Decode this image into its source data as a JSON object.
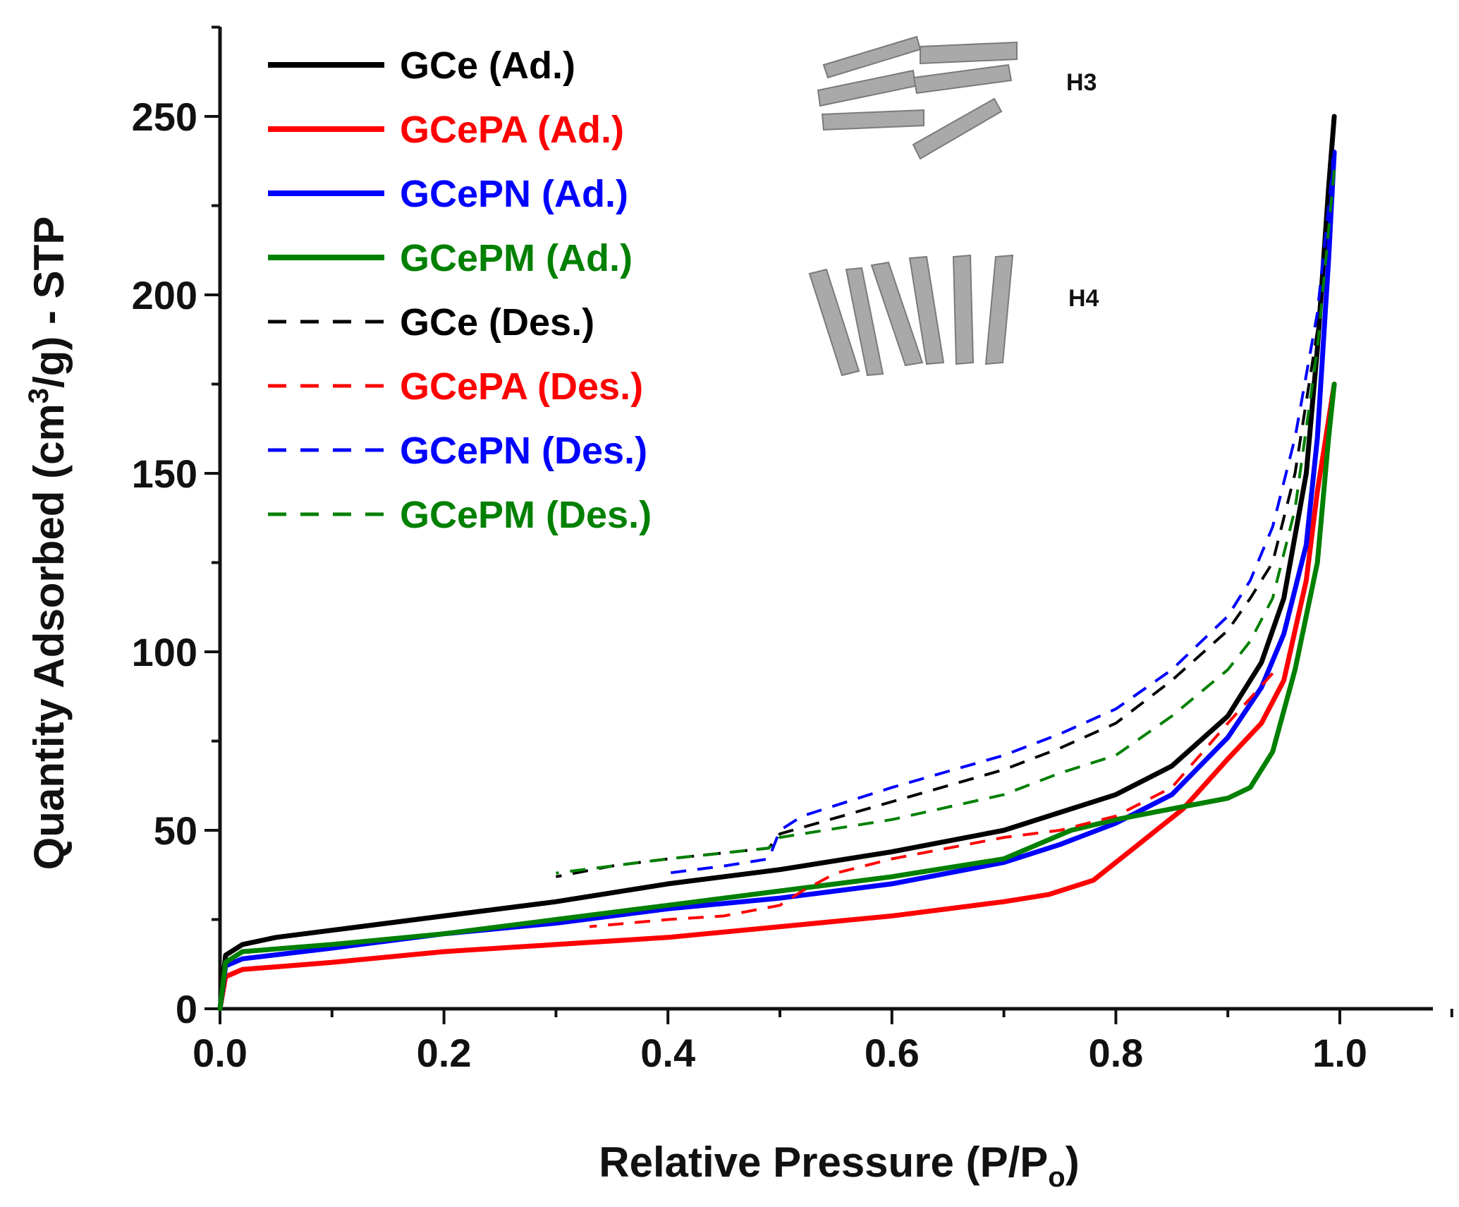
{
  "chart_data": {
    "type": "line",
    "xlabel_main": "Relative Pressure (P/P",
    "xlabel_sub": "o",
    "xlabel_end": ")",
    "ylabel_pre": "Quantity Adsorbed (cm",
    "ylabel_sup": "3",
    "ylabel_post": "/g) - STP",
    "xlim": [
      0,
      1.1
    ],
    "ylim": [
      0,
      275
    ],
    "x_ticks": [
      0.0,
      0.2,
      0.4,
      0.6,
      0.8,
      1.0
    ],
    "x_tick_labels": [
      "0.0",
      "0.2",
      "0.4",
      "0.6",
      "0.8",
      "1.0"
    ],
    "y_ticks": [
      0,
      50,
      100,
      150,
      200,
      250
    ],
    "y_tick_labels": [
      "0",
      "50",
      "100",
      "150",
      "200",
      "250"
    ],
    "legend_position": "top-left",
    "series": [
      {
        "name": "GCe (Ad.)",
        "color": "#000000",
        "style": "solid",
        "x": [
          0,
          0.005,
          0.02,
          0.05,
          0.1,
          0.2,
          0.3,
          0.4,
          0.5,
          0.6,
          0.7,
          0.8,
          0.85,
          0.9,
          0.93,
          0.95,
          0.97,
          0.98,
          0.99,
          0.995
        ],
        "y": [
          0,
          15,
          18,
          20,
          22,
          26,
          30,
          35,
          39,
          44,
          50,
          60,
          68,
          82,
          97,
          115,
          150,
          185,
          230,
          250
        ]
      },
      {
        "name": "GCePA (Ad.)",
        "color": "#ff0000",
        "style": "solid",
        "x": [
          0,
          0.005,
          0.02,
          0.1,
          0.2,
          0.3,
          0.4,
          0.5,
          0.6,
          0.7,
          0.74,
          0.78,
          0.82,
          0.86,
          0.9,
          0.93,
          0.95,
          0.97,
          0.98,
          0.99,
          0.995
        ],
        "y": [
          0,
          9,
          11,
          13,
          16,
          18,
          20,
          23,
          26,
          30,
          32,
          36,
          46,
          56,
          70,
          80,
          92,
          120,
          145,
          165,
          175
        ]
      },
      {
        "name": "GCePN (Ad.)",
        "color": "#0000ff",
        "style": "solid",
        "x": [
          0,
          0.005,
          0.02,
          0.1,
          0.2,
          0.3,
          0.4,
          0.5,
          0.6,
          0.7,
          0.75,
          0.8,
          0.85,
          0.9,
          0.93,
          0.95,
          0.97,
          0.98,
          0.99,
          0.995
        ],
        "y": [
          0,
          12,
          14,
          17,
          21,
          24,
          28,
          31,
          35,
          41,
          46,
          52,
          60,
          76,
          90,
          105,
          130,
          160,
          210,
          240
        ]
      },
      {
        "name": "GCePM (Ad.)",
        "color": "#008000",
        "style": "solid",
        "x": [
          0,
          0.005,
          0.02,
          0.1,
          0.2,
          0.3,
          0.4,
          0.5,
          0.6,
          0.7,
          0.73,
          0.76,
          0.8,
          0.85,
          0.9,
          0.92,
          0.94,
          0.96,
          0.98,
          0.99,
          0.995
        ],
        "y": [
          0,
          13,
          16,
          18,
          21,
          25,
          29,
          33,
          37,
          42,
          46,
          50,
          53,
          56,
          59,
          62,
          72,
          95,
          125,
          160,
          175
        ]
      },
      {
        "name": "GCe (Des.)",
        "color": "#000000",
        "style": "dashed",
        "x": [
          0.995,
          0.98,
          0.96,
          0.94,
          0.92,
          0.9,
          0.85,
          0.8,
          0.75,
          0.7,
          0.6,
          0.5,
          0.49,
          0.4,
          0.35,
          0.3
        ],
        "y": [
          250,
          190,
          150,
          125,
          115,
          106,
          92,
          80,
          73,
          67,
          58,
          49,
          45,
          42,
          40,
          37
        ]
      },
      {
        "name": "GCePA (Des.)",
        "color": "#ff0000",
        "style": "dashed",
        "x": [
          0.94,
          0.9,
          0.85,
          0.8,
          0.75,
          0.7,
          0.6,
          0.55,
          0.52,
          0.5,
          0.45,
          0.4,
          0.33
        ],
        "y": [
          94,
          80,
          62,
          54,
          50,
          48,
          42,
          38,
          33,
          29,
          26,
          25,
          23
        ]
      },
      {
        "name": "GCePN (Des.)",
        "color": "#0000ff",
        "style": "dashed",
        "x": [
          0.995,
          0.98,
          0.96,
          0.94,
          0.92,
          0.9,
          0.85,
          0.8,
          0.75,
          0.7,
          0.6,
          0.52,
          0.5,
          0.49,
          0.45,
          0.4
        ],
        "y": [
          240,
          195,
          160,
          135,
          120,
          110,
          95,
          84,
          77,
          71,
          62,
          54,
          50,
          42,
          40,
          38
        ]
      },
      {
        "name": "GCePM (Des.)",
        "color": "#008000",
        "style": "dashed",
        "x": [
          0.995,
          0.98,
          0.96,
          0.94,
          0.92,
          0.9,
          0.85,
          0.8,
          0.75,
          0.7,
          0.6,
          0.5,
          0.49,
          0.4,
          0.35,
          0.3
        ],
        "y": [
          235,
          185,
          140,
          115,
          103,
          95,
          82,
          71,
          66,
          60,
          53,
          48,
          45,
          42,
          40,
          38
        ]
      }
    ],
    "annotations": [
      "H3",
      "H4"
    ]
  }
}
